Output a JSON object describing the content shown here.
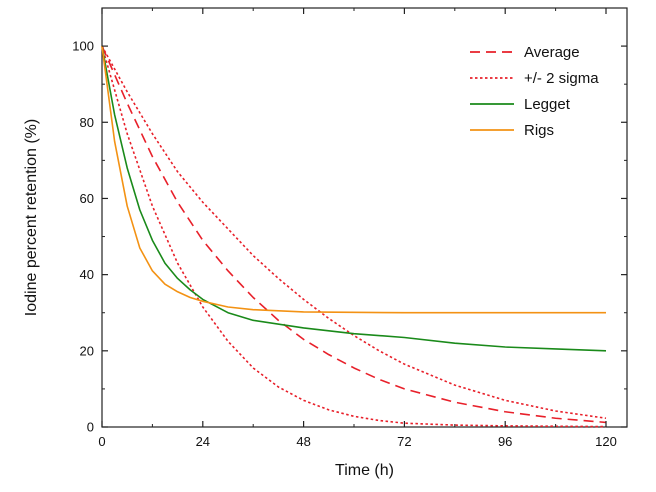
{
  "chart_data": {
    "type": "line",
    "title": "",
    "xlabel": "Time (h)",
    "ylabel": "Iodine percent retention (%)",
    "xlim": [
      0,
      125
    ],
    "ylim": [
      0,
      110
    ],
    "x_ticks": [
      0,
      24,
      48,
      72,
      96,
      120
    ],
    "y_ticks": [
      0,
      20,
      40,
      60,
      80,
      100
    ],
    "grid": false,
    "legend_position": "top-right",
    "series": [
      {
        "name": "Average",
        "color": "#e8202a",
        "style": "dashed",
        "points": [
          [
            0,
            100
          ],
          [
            6,
            85
          ],
          [
            12,
            71
          ],
          [
            18,
            59
          ],
          [
            24,
            49
          ],
          [
            30,
            41
          ],
          [
            36,
            34
          ],
          [
            42,
            28
          ],
          [
            48,
            23
          ],
          [
            54,
            19
          ],
          [
            60,
            15.5
          ],
          [
            66,
            12.5
          ],
          [
            72,
            10
          ],
          [
            84,
            6.5
          ],
          [
            96,
            4
          ],
          [
            108,
            2.3
          ],
          [
            120,
            1.2
          ]
        ]
      },
      {
        "name": "+/- 2 sigma",
        "color": "#e8202a",
        "style": "dotted",
        "points": [
          [
            0,
            100
          ],
          [
            6,
            88
          ],
          [
            12,
            77
          ],
          [
            18,
            67
          ],
          [
            24,
            59
          ],
          [
            30,
            52
          ],
          [
            36,
            45
          ],
          [
            42,
            39
          ],
          [
            48,
            33.5
          ],
          [
            54,
            28.5
          ],
          [
            60,
            24
          ],
          [
            66,
            20
          ],
          [
            72,
            16.5
          ],
          [
            84,
            11
          ],
          [
            96,
            7
          ],
          [
            108,
            4.2
          ],
          [
            120,
            2.3
          ]
        ]
      },
      {
        "name": "",
        "color": "#e8202a",
        "style": "dotted",
        "points": [
          [
            0,
            100
          ],
          [
            6,
            77
          ],
          [
            12,
            58
          ],
          [
            18,
            43
          ],
          [
            24,
            31.5
          ],
          [
            30,
            22.5
          ],
          [
            36,
            15.5
          ],
          [
            42,
            10.5
          ],
          [
            48,
            7
          ],
          [
            54,
            4.5
          ],
          [
            60,
            2.8
          ],
          [
            66,
            1.7
          ],
          [
            72,
            1
          ],
          [
            84,
            0.5
          ],
          [
            96,
            0.3
          ],
          [
            108,
            0.2
          ],
          [
            120,
            0.1
          ]
        ]
      },
      {
        "name": "Legget",
        "color": "#1a8a1a",
        "style": "solid",
        "points": [
          [
            0,
            100
          ],
          [
            3,
            82
          ],
          [
            6,
            68
          ],
          [
            9,
            57
          ],
          [
            12,
            49
          ],
          [
            15,
            43
          ],
          [
            18,
            39
          ],
          [
            21,
            36
          ],
          [
            24,
            33.5
          ],
          [
            30,
            30
          ],
          [
            36,
            28
          ],
          [
            48,
            26
          ],
          [
            60,
            24.5
          ],
          [
            72,
            23.5
          ],
          [
            84,
            22
          ],
          [
            96,
            21
          ],
          [
            108,
            20.5
          ],
          [
            120,
            20
          ]
        ]
      },
      {
        "name": "Rigs",
        "color": "#f39214",
        "style": "solid",
        "points": [
          [
            0,
            100
          ],
          [
            3,
            75
          ],
          [
            6,
            58
          ],
          [
            9,
            47
          ],
          [
            12,
            41
          ],
          [
            15,
            37.5
          ],
          [
            18,
            35.5
          ],
          [
            21,
            34
          ],
          [
            24,
            33
          ],
          [
            30,
            31.5
          ],
          [
            36,
            30.8
          ],
          [
            48,
            30.2
          ],
          [
            72,
            30
          ],
          [
            96,
            30
          ],
          [
            120,
            30
          ]
        ]
      }
    ]
  }
}
